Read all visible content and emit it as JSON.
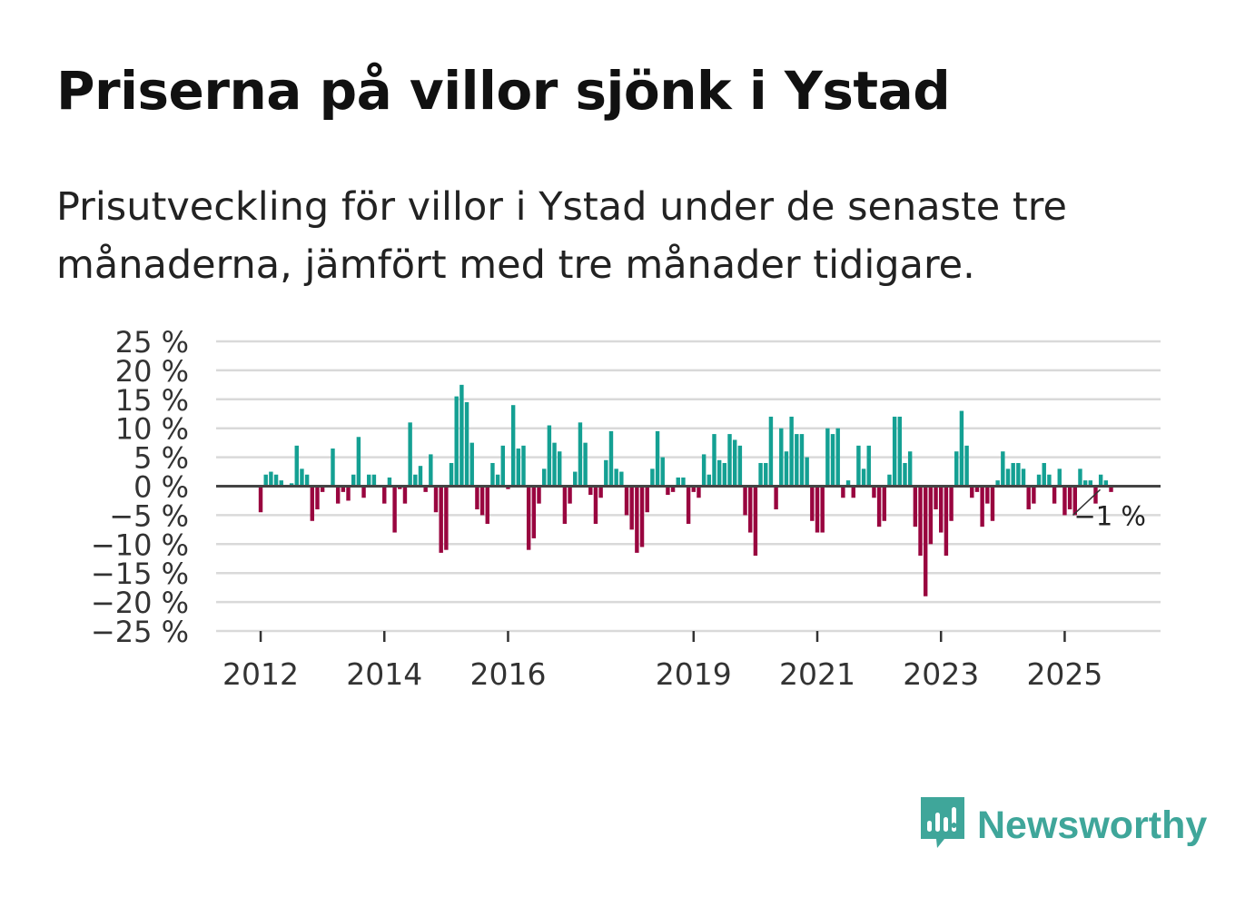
{
  "title": "Priserna på villor sjönk i Ystad",
  "subtitle": "Prisutveckling för villor i Ystad under de senaste tre månaderna, jämfört med tre månader tidigare.",
  "brand": {
    "name": "Newsworthy",
    "icon": "newsworthy-logo-icon"
  },
  "colors": {
    "positive": "#14a093",
    "negative": "#99053f",
    "grid": "#d9d9d9",
    "zero": "#444444",
    "brand": "#3fa69a"
  },
  "chart_data": {
    "type": "bar",
    "title": "Priserna på villor sjönk i Ystad",
    "xlabel": "",
    "ylabel": "",
    "unit": "%",
    "ylim": [
      -25,
      25
    ],
    "yticks": [
      25,
      20,
      15,
      10,
      5,
      0,
      -5,
      -10,
      -15,
      -20,
      -25
    ],
    "ytick_labels": [
      "25 %",
      "20 %",
      "15 %",
      "10 %",
      "5 %",
      "0 %",
      "−5 %",
      "−10 %",
      "−15 %",
      "−20 %",
      "−25 %"
    ],
    "xrange": [
      2011.28,
      2026.55
    ],
    "xticks": [
      2012,
      2014,
      2016,
      2019,
      2021,
      2023,
      2025
    ],
    "xtick_labels": [
      "2012",
      "2014",
      "2016",
      "2019",
      "2021",
      "2023",
      "2025"
    ],
    "start": 2012,
    "step_months": 1,
    "values": [
      -4.5,
      2,
      2.5,
      2,
      1,
      0,
      0.5,
      7,
      3,
      2,
      -6,
      -4,
      -1,
      0,
      6.5,
      -3,
      -1,
      -2.5,
      2,
      8.5,
      -2,
      2,
      2,
      0,
      -3,
      1.5,
      -8,
      -0.5,
      -3,
      11,
      2,
      3.5,
      -1,
      5.5,
      -4.5,
      -11.5,
      -11,
      4,
      15.5,
      17.5,
      14.5,
      7.5,
      -4,
      -5,
      -6.5,
      4,
      2,
      7,
      -0.5,
      14,
      6.5,
      7,
      -11,
      -9,
      -3,
      3,
      10.5,
      7.5,
      6,
      -6.5,
      -3,
      2.5,
      11,
      7.5,
      -1.5,
      -6.5,
      -2,
      4.5,
      9.5,
      3,
      2.5,
      -5,
      -7.5,
      -11.5,
      -10.5,
      -4.5,
      3,
      9.5,
      5,
      -1.5,
      -1,
      1.5,
      1.5,
      -6.5,
      -1,
      -2,
      5.5,
      2,
      9,
      4.5,
      4,
      9,
      8,
      7,
      -5,
      -8,
      -12,
      4,
      4,
      12,
      -4,
      10,
      6,
      12,
      9,
      9,
      5,
      -6,
      -8,
      -8,
      10,
      9,
      10,
      -2,
      1,
      -2,
      7,
      3,
      7,
      -2,
      -7,
      -6,
      2,
      12,
      12,
      4,
      6,
      -7,
      -12,
      -19,
      -10,
      -4,
      -8,
      -12,
      -6,
      6,
      13,
      7,
      -2,
      -1,
      -7,
      -3,
      -6,
      1,
      6,
      3,
      4,
      4,
      3,
      -4,
      -3,
      2,
      4,
      2,
      -3,
      3,
      -5,
      -4,
      -5,
      3,
      1,
      1,
      -3,
      2,
      1,
      -1
    ],
    "last_label": "−1 %"
  }
}
